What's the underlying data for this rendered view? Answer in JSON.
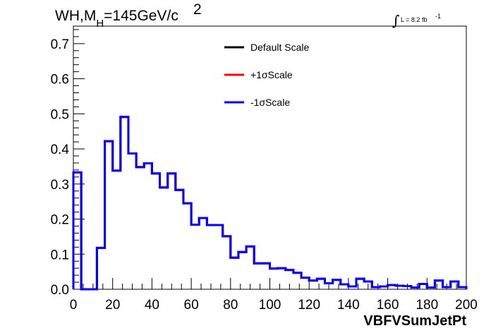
{
  "chart_data": {
    "type": "line",
    "title_main": "WH,M",
    "title_sub": "H",
    "title_value": "=145GeV/c",
    "title_sup": "2",
    "lumi_label": "L = 8.2 fb",
    "lumi_sup": "-1",
    "lumi_integral": "∫",
    "xlabel": "VBFVSumJetPt",
    "xlim": [
      0,
      200
    ],
    "ylim": [
      0,
      0.75
    ],
    "x_ticks": [
      "0",
      "20",
      "40",
      "60",
      "80",
      "100",
      "120",
      "140",
      "160",
      "180",
      "200"
    ],
    "y_ticks": [
      "0.0",
      "0.1",
      "0.2",
      "0.3",
      "0.4",
      "0.5",
      "0.6",
      "0.7"
    ],
    "bin_width": 4,
    "series": [
      {
        "name": "Default Scale",
        "color": "#000000",
        "values": [
          0.333,
          0.0,
          0.0,
          0.118,
          0.422,
          0.338,
          0.491,
          0.387,
          0.348,
          0.359,
          0.33,
          0.29,
          0.33,
          0.283,
          0.245,
          0.184,
          0.203,
          0.183,
          0.183,
          0.151,
          0.09,
          0.106,
          0.122,
          0.074,
          0.074,
          0.059,
          0.06,
          0.055,
          0.047,
          0.033,
          0.025,
          0.03,
          0.017,
          0.027,
          0.014,
          0.008,
          0.03,
          0.022,
          0.006,
          0.008,
          0.012,
          0.01,
          0.009,
          0.005,
          0.015,
          0.005,
          0.025,
          0.006,
          0.022,
          0.006
        ]
      },
      {
        "name": "+1σScale",
        "color": "#ff0000",
        "values": [
          0.333,
          0.0,
          0.0,
          0.118,
          0.422,
          0.338,
          0.491,
          0.387,
          0.348,
          0.359,
          0.33,
          0.29,
          0.33,
          0.283,
          0.245,
          0.184,
          0.203,
          0.183,
          0.183,
          0.151,
          0.09,
          0.106,
          0.122,
          0.074,
          0.074,
          0.059,
          0.06,
          0.055,
          0.047,
          0.033,
          0.025,
          0.03,
          0.017,
          0.027,
          0.014,
          0.008,
          0.03,
          0.022,
          0.006,
          0.008,
          0.012,
          0.01,
          0.009,
          0.005,
          0.015,
          0.005,
          0.025,
          0.006,
          0.022,
          0.006
        ]
      },
      {
        "name": "-1σScale",
        "color": "#0000ff",
        "values": [
          0.333,
          0.0,
          0.0,
          0.118,
          0.422,
          0.338,
          0.491,
          0.387,
          0.348,
          0.359,
          0.33,
          0.29,
          0.33,
          0.283,
          0.245,
          0.184,
          0.203,
          0.183,
          0.183,
          0.151,
          0.09,
          0.106,
          0.122,
          0.074,
          0.074,
          0.059,
          0.06,
          0.055,
          0.047,
          0.033,
          0.025,
          0.03,
          0.017,
          0.027,
          0.014,
          0.008,
          0.03,
          0.022,
          0.006,
          0.008,
          0.012,
          0.01,
          0.009,
          0.005,
          0.015,
          0.005,
          0.025,
          0.006,
          0.022,
          0.006
        ]
      }
    ],
    "legend_position": "top-center",
    "grid": false
  }
}
